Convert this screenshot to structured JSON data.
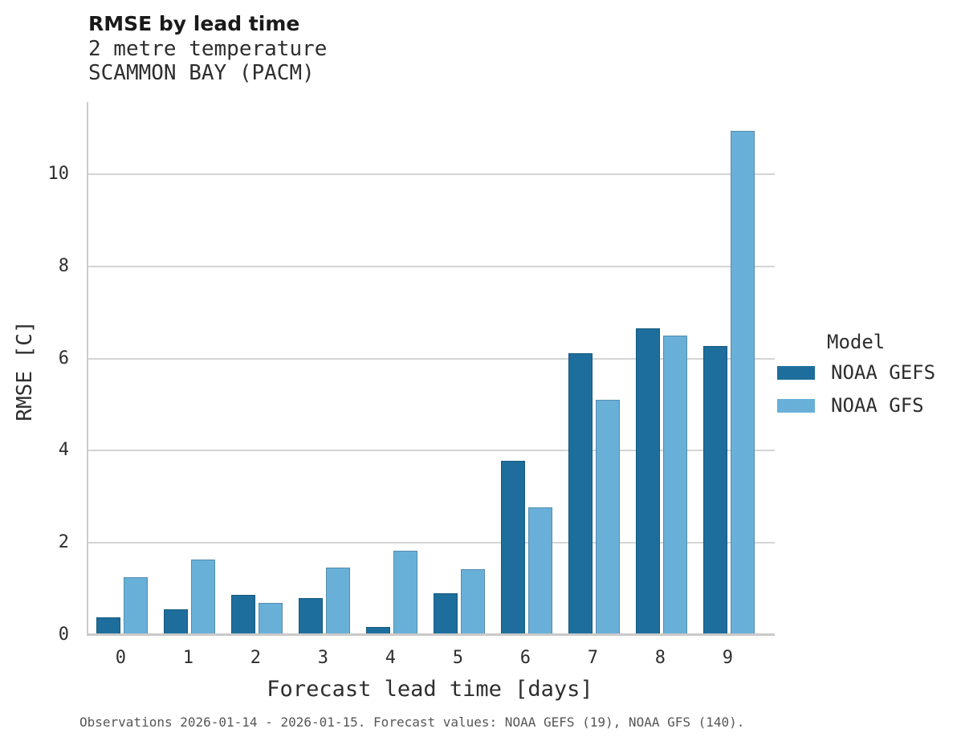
{
  "chart_data": {
    "type": "bar",
    "title": "RMSE by lead time",
    "subtitle1": "2 metre temperature",
    "subtitle2": "SCAMMON BAY (PACM)",
    "xlabel": "Forecast lead time [days]",
    "ylabel": "RMSE [C]",
    "categories": [
      "0",
      "1",
      "2",
      "3",
      "4",
      "5",
      "6",
      "7",
      "8",
      "9"
    ],
    "series": [
      {
        "name": "NOAA GEFS",
        "color": "#1d6e9c",
        "values": [
          0.38,
          0.55,
          0.87,
          0.8,
          0.17,
          0.91,
          3.78,
          6.12,
          6.65,
          6.28
        ]
      },
      {
        "name": "NOAA GFS",
        "color": "#69b0d9",
        "values": [
          1.25,
          1.63,
          0.7,
          1.46,
          1.83,
          1.43,
          2.77,
          5.1,
          6.49,
          10.94
        ]
      }
    ],
    "yticks": [
      0,
      2,
      4,
      6,
      8,
      10
    ],
    "ylim": [
      0,
      11.5
    ],
    "grid": true,
    "legend_title": "Model",
    "legend_position": "right"
  },
  "footer": {
    "caption": "Observations 2026-01-14 - 2026-01-15. Forecast values: NOAA GEFS (19), NOAA GFS (140)."
  },
  "colors": {
    "gridline": "#d4d4d4",
    "axis": "#c9c9c9",
    "title_text": "#1a1a1a",
    "body_text": "#2e2e2e",
    "caption_text": "#565656"
  }
}
